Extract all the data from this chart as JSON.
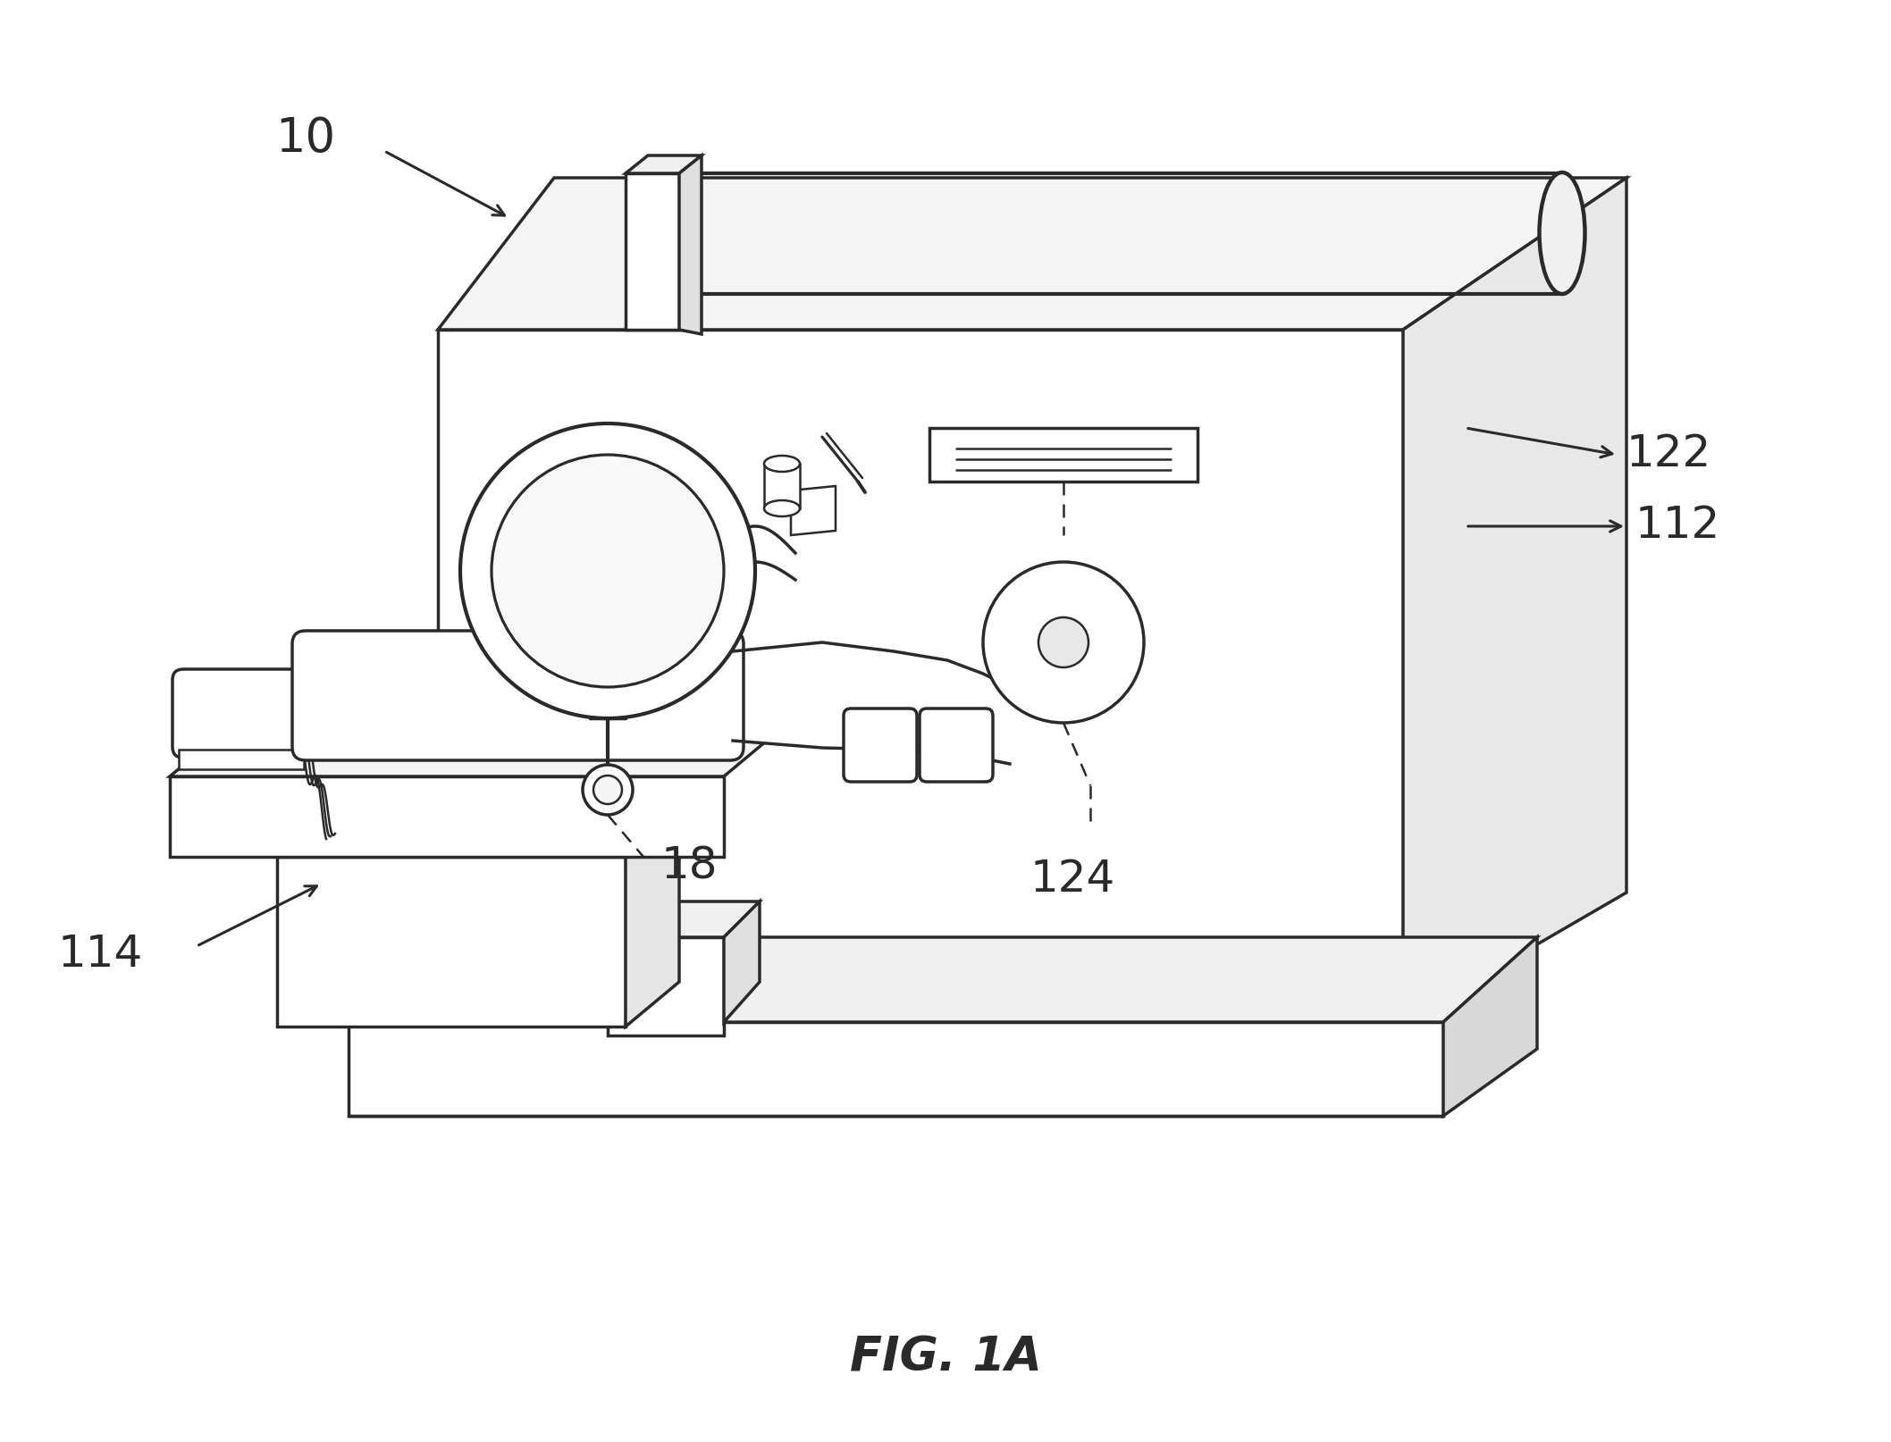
{
  "background_color": "#ffffff",
  "line_color": "#2a2a2a",
  "lw": 2.5,
  "lw_thin": 1.8,
  "lw_thick": 3.0,
  "fig_label": "FIG. 1A",
  "fig_label_fontsize": 38
}
